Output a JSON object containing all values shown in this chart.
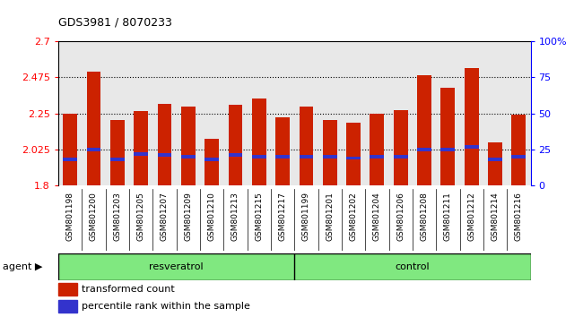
{
  "title": "GDS3981 / 8070233",
  "samples": [
    "GSM801198",
    "GSM801200",
    "GSM801203",
    "GSM801205",
    "GSM801207",
    "GSM801209",
    "GSM801210",
    "GSM801213",
    "GSM801215",
    "GSM801217",
    "GSM801199",
    "GSM801201",
    "GSM801202",
    "GSM801204",
    "GSM801206",
    "GSM801208",
    "GSM801211",
    "GSM801212",
    "GSM801214",
    "GSM801216"
  ],
  "transformed_count": [
    2.25,
    2.51,
    2.21,
    2.265,
    2.31,
    2.295,
    2.09,
    2.305,
    2.345,
    2.225,
    2.295,
    2.21,
    2.19,
    2.25,
    2.27,
    2.49,
    2.41,
    2.535,
    2.07,
    2.24
  ],
  "percentile_rank": [
    18,
    25,
    18,
    22,
    21,
    20,
    18,
    21,
    20,
    20,
    20,
    20,
    19,
    20,
    20,
    25,
    25,
    27,
    18,
    20
  ],
  "ylim_left": [
    1.8,
    2.7
  ],
  "yticks_left": [
    1.8,
    2.025,
    2.25,
    2.475,
    2.7
  ],
  "ylim_right": [
    0,
    100
  ],
  "yticks_right": [
    0,
    25,
    50,
    75,
    100
  ],
  "bar_color": "#CC2200",
  "percentile_color": "#3333CC",
  "bar_bottom": 1.8,
  "plot_bg": "#E8E8E8",
  "group_color": "#80E880",
  "agent_label": "agent",
  "resveratrol_label": "resveratrol",
  "control_label": "control",
  "legend_items": [
    {
      "label": "transformed count",
      "color": "#CC2200"
    },
    {
      "label": "percentile rank within the sample",
      "color": "#3333CC"
    }
  ]
}
